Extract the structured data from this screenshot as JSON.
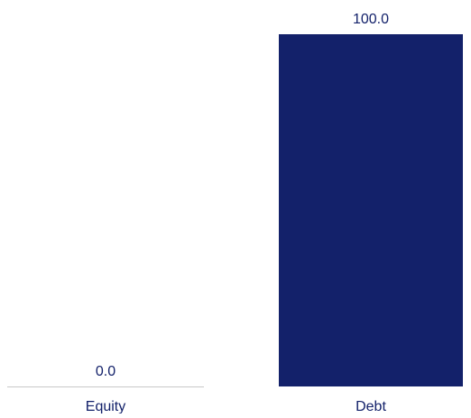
{
  "chart_data": {
    "type": "bar",
    "categories": [
      "Equity",
      "Debt"
    ],
    "values": [
      0.0,
      100.0
    ],
    "value_labels": [
      "0.0",
      "100.0"
    ],
    "title": "",
    "xlabel": "",
    "ylabel": "",
    "ylim": [
      0,
      100
    ],
    "grid": false,
    "legend": "none",
    "colors": {
      "bar": "#13216a",
      "text": "#13216a",
      "baseline": "#c8c8c8"
    }
  }
}
